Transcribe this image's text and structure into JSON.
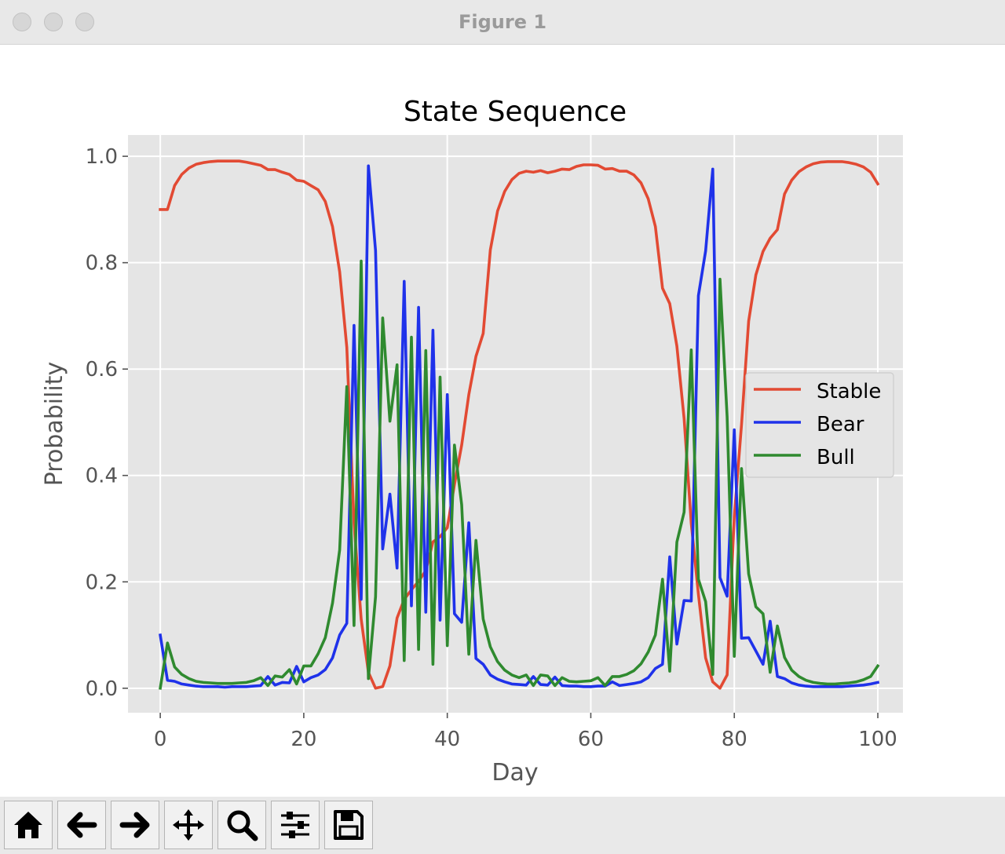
{
  "window": {
    "title": "Figure 1"
  },
  "toolbar": {
    "buttons": [
      {
        "name": "home-button",
        "icon": "home-icon"
      },
      {
        "name": "back-button",
        "icon": "arrow-left-icon"
      },
      {
        "name": "forward-button",
        "icon": "arrow-right-icon"
      },
      {
        "name": "pan-button",
        "icon": "move-icon"
      },
      {
        "name": "zoom-button",
        "icon": "magnifier-icon"
      },
      {
        "name": "configure-subplots-button",
        "icon": "sliders-icon"
      },
      {
        "name": "save-button",
        "icon": "floppy-disk-icon"
      }
    ]
  },
  "chart_data": {
    "type": "line",
    "title": "State Sequence",
    "xlabel": "Day",
    "ylabel": "Probability",
    "xlim": [
      -4.5,
      103.5
    ],
    "ylim": [
      -0.046,
      1.04
    ],
    "xticks": [
      0,
      20,
      40,
      60,
      80,
      100
    ],
    "yticks": [
      0.0,
      0.2,
      0.4,
      0.6,
      0.8,
      1.0
    ],
    "ytick_labels": [
      "0.0",
      "0.2",
      "0.4",
      "0.6",
      "0.8",
      "1.0"
    ],
    "grid": true,
    "style": "ggplot",
    "legend_position": "center-right",
    "series": [
      {
        "name": "Stable",
        "color": "#e24a33",
        "values": [
          0.9,
          0.9,
          0.945,
          0.966,
          0.978,
          0.985,
          0.988,
          0.99,
          0.991,
          0.991,
          0.991,
          0.991,
          0.989,
          0.986,
          0.983,
          0.975,
          0.975,
          0.97,
          0.966,
          0.955,
          0.953,
          0.945,
          0.937,
          0.915,
          0.868,
          0.783,
          0.641,
          0.31,
          0.13,
          0.03,
          0.0,
          0.003,
          0.042,
          0.132,
          0.167,
          0.185,
          0.201,
          0.221,
          0.275,
          0.285,
          0.302,
          0.383,
          0.457,
          0.552,
          0.624,
          0.667,
          0.824,
          0.897,
          0.934,
          0.956,
          0.968,
          0.972,
          0.97,
          0.973,
          0.969,
          0.972,
          0.976,
          0.975,
          0.981,
          0.984,
          0.984,
          0.983,
          0.976,
          0.977,
          0.972,
          0.972,
          0.965,
          0.95,
          0.92,
          0.868,
          0.752,
          0.723,
          0.643,
          0.507,
          0.31,
          0.177,
          0.057,
          0.012,
          0.0,
          0.025,
          0.323,
          0.495,
          0.69,
          0.777,
          0.821,
          0.846,
          0.862,
          0.929,
          0.955,
          0.971,
          0.98,
          0.986,
          0.989,
          0.99,
          0.99,
          0.99,
          0.988,
          0.985,
          0.98,
          0.97,
          0.948
        ]
      },
      {
        "name": "Bear",
        "color": "#1f32ea",
        "values": [
          0.1,
          0.015,
          0.013,
          0.008,
          0.006,
          0.004,
          0.003,
          0.003,
          0.003,
          0.002,
          0.003,
          0.003,
          0.003,
          0.004,
          0.005,
          0.022,
          0.006,
          0.011,
          0.01,
          0.041,
          0.012,
          0.02,
          0.025,
          0.035,
          0.057,
          0.1,
          0.122,
          0.682,
          0.167,
          0.982,
          0.823,
          0.262,
          0.365,
          0.226,
          0.765,
          0.155,
          0.716,
          0.143,
          0.673,
          0.128,
          0.552,
          0.14,
          0.124,
          0.311,
          0.056,
          0.045,
          0.025,
          0.017,
          0.012,
          0.008,
          0.007,
          0.006,
          0.022,
          0.007,
          0.006,
          0.021,
          0.005,
          0.004,
          0.004,
          0.003,
          0.003,
          0.004,
          0.004,
          0.012,
          0.005,
          0.007,
          0.009,
          0.012,
          0.02,
          0.037,
          0.045,
          0.247,
          0.083,
          0.165,
          0.164,
          0.738,
          0.822,
          0.976,
          0.208,
          0.173,
          0.486,
          0.094,
          0.095,
          0.07,
          0.045,
          0.126,
          0.022,
          0.018,
          0.01,
          0.006,
          0.004,
          0.003,
          0.003,
          0.003,
          0.003,
          0.003,
          0.004,
          0.005,
          0.006,
          0.008,
          0.011
        ]
      },
      {
        "name": "Bull",
        "color": "#2f8a2f",
        "values": [
          0.0,
          0.085,
          0.04,
          0.026,
          0.018,
          0.013,
          0.011,
          0.01,
          0.009,
          0.009,
          0.009,
          0.01,
          0.011,
          0.014,
          0.02,
          0.005,
          0.023,
          0.021,
          0.035,
          0.008,
          0.042,
          0.042,
          0.065,
          0.095,
          0.16,
          0.26,
          0.567,
          0.118,
          0.803,
          0.018,
          0.172,
          0.696,
          0.502,
          0.608,
          0.052,
          0.66,
          0.073,
          0.635,
          0.045,
          0.585,
          0.08,
          0.457,
          0.345,
          0.064,
          0.278,
          0.13,
          0.078,
          0.05,
          0.034,
          0.025,
          0.02,
          0.025,
          0.005,
          0.025,
          0.023,
          0.005,
          0.02,
          0.013,
          0.012,
          0.013,
          0.014,
          0.02,
          0.005,
          0.022,
          0.022,
          0.026,
          0.033,
          0.046,
          0.068,
          0.1,
          0.205,
          0.032,
          0.275,
          0.331,
          0.636,
          0.205,
          0.163,
          0.026,
          0.769,
          0.51,
          0.06,
          0.413,
          0.215,
          0.153,
          0.14,
          0.03,
          0.117,
          0.058,
          0.034,
          0.022,
          0.015,
          0.011,
          0.009,
          0.008,
          0.008,
          0.009,
          0.01,
          0.012,
          0.016,
          0.022,
          0.042
        ]
      }
    ]
  }
}
